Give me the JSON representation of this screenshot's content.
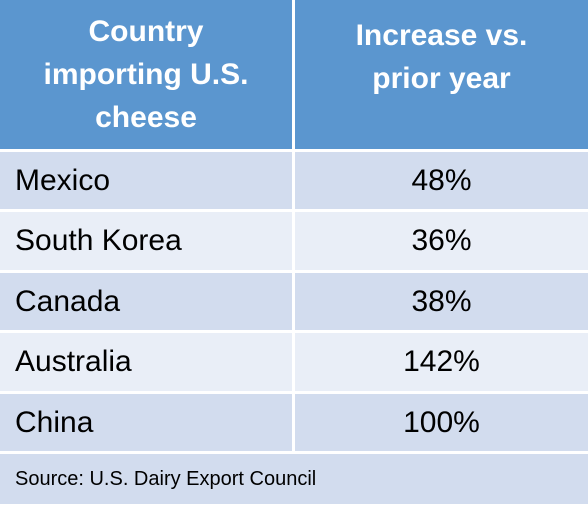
{
  "chart_data": {
    "type": "table",
    "columns": [
      "Country importing U.S. cheese",
      "Increase vs. prior year"
    ],
    "header_lines": {
      "col1": [
        "Country",
        "importing U.S.",
        "cheese"
      ],
      "col2": [
        "Increase vs.",
        "prior year"
      ]
    },
    "rows": [
      {
        "country": "Mexico",
        "increase": "48%"
      },
      {
        "country": "South Korea",
        "increase": "36%"
      },
      {
        "country": "Canada",
        "increase": "38%"
      },
      {
        "country": "Australia",
        "increase": "142%"
      },
      {
        "country": "China",
        "increase": "100%"
      }
    ],
    "source": "Source: U.S. Dairy Export Council"
  },
  "colors": {
    "header_bg": "#5b96cf",
    "row_dark": "#d2dcee",
    "row_light": "#e9eef7"
  }
}
